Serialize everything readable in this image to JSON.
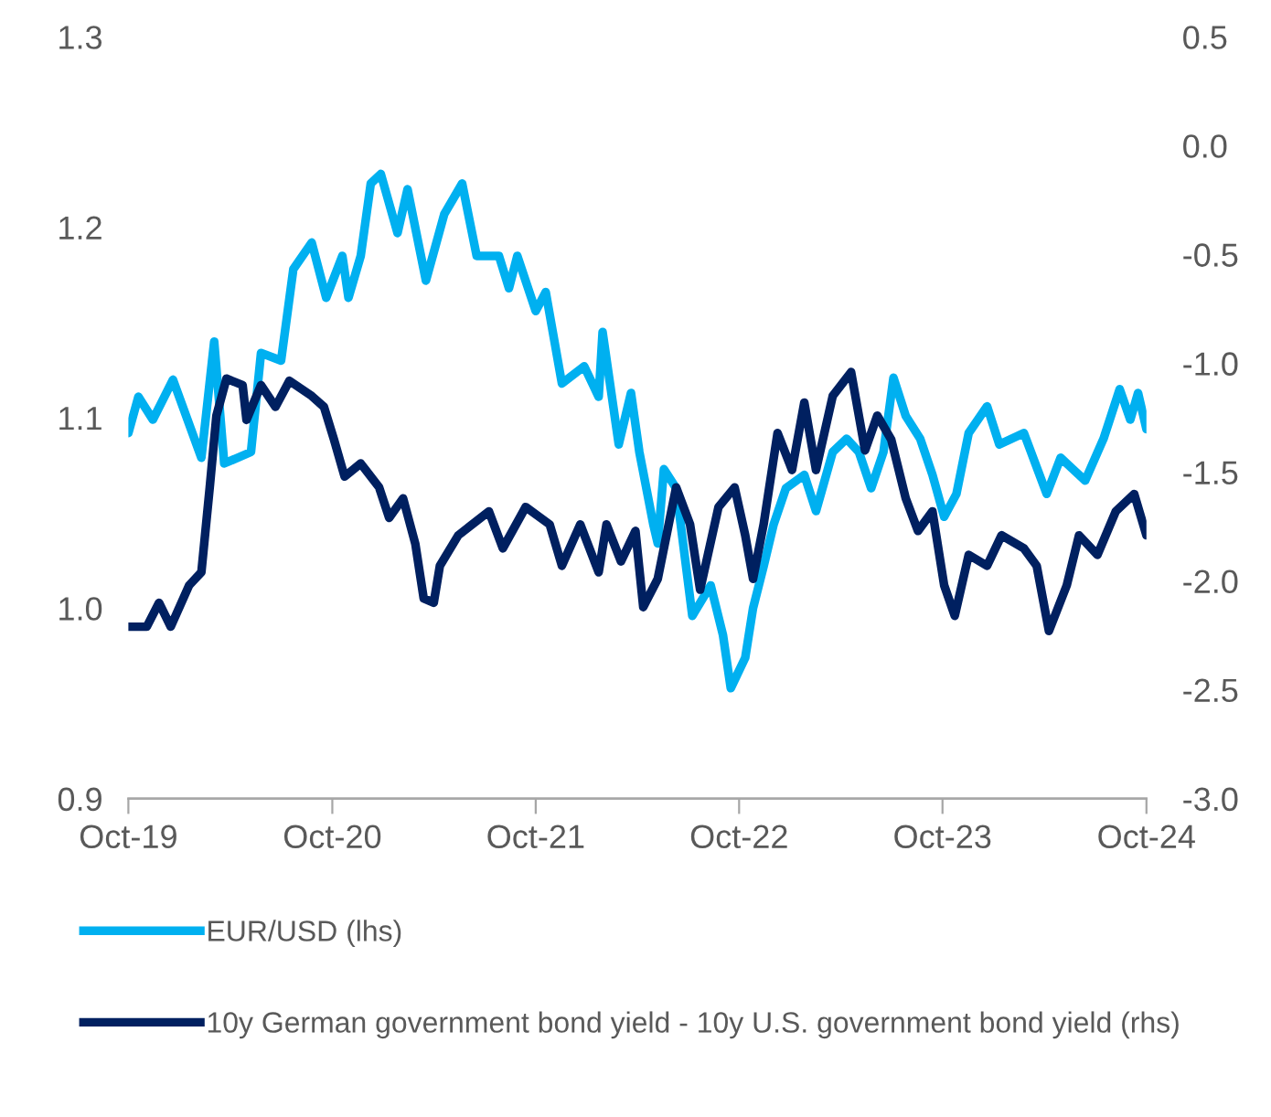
{
  "chart_data": {
    "type": "line",
    "xlim": [
      "2019-10-01",
      "2024-10-01"
    ],
    "xticks": [
      {
        "value": "2019-10-01",
        "label": "Oct-19"
      },
      {
        "value": "2020-10-01",
        "label": "Oct-20"
      },
      {
        "value": "2021-10-01",
        "label": "Oct-21"
      },
      {
        "value": "2022-10-01",
        "label": "Oct-22"
      },
      {
        "value": "2023-10-01",
        "label": "Oct-23"
      },
      {
        "value": "2024-10-01",
        "label": "Oct-24"
      }
    ],
    "ylim": [
      0.9,
      1.3
    ],
    "yticks": [
      0.9,
      {
        "value": 1.0,
        "label": "1.0"
      },
      1.1,
      1.2,
      1.3
    ],
    "y2lim": [
      -3.0,
      0.5
    ],
    "y2ticks": [
      {
        "value": -3.0,
        "label": "-3.0"
      },
      {
        "value": -2.5,
        "label": "-2.5"
      },
      {
        "value": -2.0,
        "label": "-2.0"
      },
      {
        "value": -1.5,
        "label": "-1.5"
      },
      {
        "value": -1.0,
        "label": "-1.0"
      },
      {
        "value": -0.5,
        "label": "-0.5"
      },
      {
        "value": 0.0,
        "label": "0.0"
      },
      {
        "value": 0.5,
        "label": "0.5"
      }
    ],
    "legend": "bottom",
    "grid": false,
    "marker": "none",
    "line_style": "solid",
    "series": [
      {
        "name": "EUR/USD (lhs)",
        "color": "#00b0f0",
        "axis": "y",
        "x": [
          "2019-10-01",
          "2019-10-19",
          "2019-11-14",
          "2019-12-20",
          "2020-02-09",
          "2020-03-03",
          "2020-03-21",
          "2020-05-08",
          "2020-05-26",
          "2020-07-01",
          "2020-07-23",
          "2020-08-25",
          "2020-09-20",
          "2020-10-19",
          "2020-10-30",
          "2020-11-21",
          "2020-12-09",
          "2020-12-27",
          "2021-01-26",
          "2021-02-13",
          "2021-03-18",
          "2021-04-20",
          "2021-05-22",
          "2021-06-17",
          "2021-07-27",
          "2021-08-14",
          "2021-08-29",
          "2021-10-01",
          "2021-10-19",
          "2021-11-17",
          "2021-12-27",
          "2022-01-22",
          "2022-01-29",
          "2022-02-27",
          "2022-03-21",
          "2022-04-05",
          "2022-04-30",
          "2022-05-08",
          "2022-05-19",
          "2022-06-10",
          "2022-07-09",
          "2022-08-11",
          "2022-09-02",
          "2022-09-16",
          "2022-10-12",
          "2022-10-26",
          "2022-11-14",
          "2022-12-02",
          "2022-12-24",
          "2023-01-26",
          "2023-02-16",
          "2023-03-18",
          "2023-04-12",
          "2023-05-04",
          "2023-05-26",
          "2023-06-17",
          "2023-07-05",
          "2023-07-27",
          "2023-08-22",
          "2023-09-13",
          "2023-10-04",
          "2023-10-26",
          "2023-11-17",
          "2023-12-20",
          "2024-01-11",
          "2024-02-24",
          "2024-04-05",
          "2024-04-30",
          "2024-06-13",
          "2024-07-16",
          "2024-08-14",
          "2024-09-02",
          "2024-09-16",
          "2024-10-01"
        ],
        "values": [
          1.092,
          1.111,
          1.099,
          1.12,
          1.079,
          1.14,
          1.076,
          1.082,
          1.134,
          1.13,
          1.178,
          1.192,
          1.163,
          1.185,
          1.163,
          1.185,
          1.223,
          1.228,
          1.197,
          1.22,
          1.172,
          1.207,
          1.223,
          1.185,
          1.185,
          1.168,
          1.185,
          1.156,
          1.166,
          1.118,
          1.127,
          1.111,
          1.145,
          1.086,
          1.113,
          1.082,
          1.044,
          1.034,
          1.073,
          1.063,
          0.996,
          1.012,
          0.986,
          0.958,
          0.974,
          1.0,
          1.022,
          1.044,
          1.063,
          1.07,
          1.051,
          1.082,
          1.089,
          1.082,
          1.063,
          1.082,
          1.121,
          1.101,
          1.089,
          1.07,
          1.048,
          1.06,
          1.092,
          1.106,
          1.086,
          1.092,
          1.06,
          1.079,
          1.067,
          1.089,
          1.115,
          1.099,
          1.113,
          1.094
        ]
      },
      {
        "name": "10y German government bond yield - 10y U.S. government bond yield (rhs)",
        "color": "#002060",
        "axis": "y2",
        "x": [
          "2019-10-01",
          "2019-11-03",
          "2019-11-25",
          "2019-12-16",
          "2020-01-18",
          "2020-02-09",
          "2020-02-24",
          "2020-03-07",
          "2020-03-25",
          "2020-04-23",
          "2020-04-30",
          "2020-05-26",
          "2020-06-21",
          "2020-07-16",
          "2020-08-25",
          "2020-09-16",
          "2020-10-04",
          "2020-10-23",
          "2020-11-21",
          "2020-12-24",
          "2021-01-11",
          "2021-02-05",
          "2021-02-27",
          "2021-03-14",
          "2021-04-01",
          "2021-04-12",
          "2021-05-15",
          "2021-07-09",
          "2021-08-03",
          "2021-09-13",
          "2021-10-26",
          "2021-11-17",
          "2021-12-20",
          "2022-01-22",
          "2022-02-05",
          "2022-03-03",
          "2022-03-29",
          "2022-04-12",
          "2022-04-16",
          "2022-05-08",
          "2022-06-10",
          "2022-07-05",
          "2022-07-23",
          "2022-08-25",
          "2022-09-23",
          "2022-10-12",
          "2022-10-26",
          "2022-11-14",
          "2022-12-09",
          "2023-01-04",
          "2023-01-26",
          "2023-02-16",
          "2023-03-18",
          "2023-04-20",
          "2023-05-15",
          "2023-06-06",
          "2023-07-01",
          "2023-07-27",
          "2023-08-18",
          "2023-09-13",
          "2023-10-04",
          "2023-10-23",
          "2023-11-17",
          "2023-12-20",
          "2024-01-15",
          "2024-02-24",
          "2024-03-18",
          "2024-04-09",
          "2024-05-11",
          "2024-06-02",
          "2024-07-05",
          "2024-08-07",
          "2024-09-09",
          "2024-10-01"
        ],
        "values": [
          -2.21,
          -2.21,
          -2.1,
          -2.21,
          -2.02,
          -1.96,
          -1.57,
          -1.24,
          -1.07,
          -1.1,
          -1.26,
          -1.1,
          -1.2,
          -1.08,
          -1.15,
          -1.2,
          -1.35,
          -1.52,
          -1.46,
          -1.57,
          -1.71,
          -1.62,
          -1.83,
          -2.08,
          -2.1,
          -1.93,
          -1.79,
          -1.68,
          -1.85,
          -1.66,
          -1.74,
          -1.93,
          -1.74,
          -1.96,
          -1.74,
          -1.91,
          -1.77,
          -2.12,
          -2.1,
          -1.99,
          -1.57,
          -1.74,
          -2.04,
          -1.66,
          -1.57,
          -1.79,
          -1.99,
          -1.74,
          -1.32,
          -1.49,
          -1.18,
          -1.49,
          -1.15,
          -1.04,
          -1.4,
          -1.24,
          -1.35,
          -1.62,
          -1.77,
          -1.68,
          -2.02,
          -2.16,
          -1.88,
          -1.93,
          -1.79,
          -1.85,
          -1.93,
          -2.23,
          -2.02,
          -1.79,
          -1.88,
          -1.68,
          -1.6,
          -1.79
        ]
      }
    ]
  }
}
